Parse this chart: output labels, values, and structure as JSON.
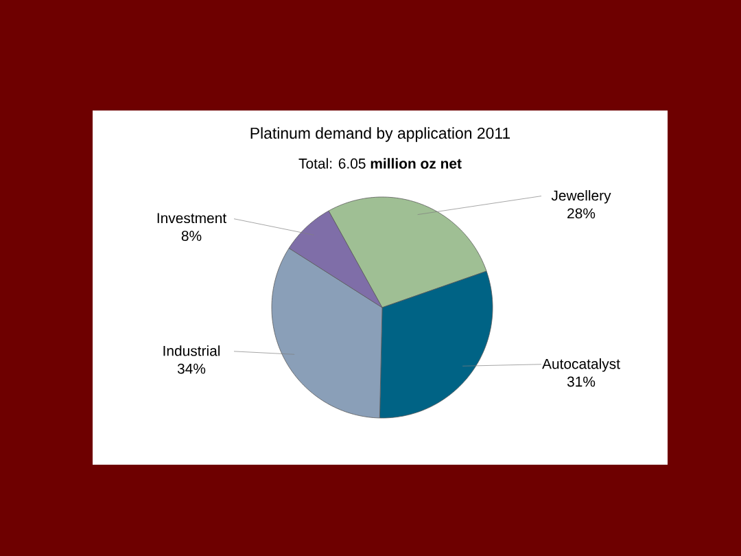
{
  "chart_data": {
    "type": "pie",
    "title": "Platinum demand by application 2011",
    "subtitle": "Total: 6.05 **million oz net**",
    "categories": [
      "Jewellery",
      "Autocatalyst",
      "Industrial",
      "Investment"
    ],
    "values": [
      28,
      31,
      34,
      8
    ],
    "value_labels": [
      "28%",
      "31%",
      "34%",
      "8%"
    ],
    "colors": [
      "#9fbf94",
      "#006385",
      "#8a9fb8",
      "#7f6ea8"
    ]
  }
}
